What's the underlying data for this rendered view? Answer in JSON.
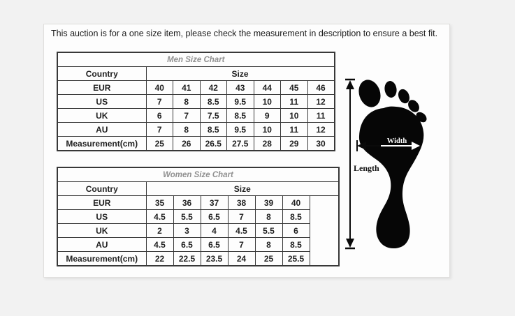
{
  "notice": "This auction is for a one size item, please check the measurement in description to ensure a best fit.",
  "foot_diagram": {
    "width_label": "Width",
    "length_label": "Length"
  },
  "colors": {
    "page_background": "#f2f2f2",
    "panel_background": "#fdfdfd",
    "table_border": "#383838",
    "table_title_text": "#909090",
    "table_body_text": "#1f1f1f",
    "foot_silhouette": "#060606",
    "width_label_text": "#ffffff"
  },
  "chart_data": [
    {
      "type": "table",
      "title": "Men Size Chart",
      "country_header": "Country",
      "size_header": "Size",
      "rows": [
        {
          "label": "EUR",
          "values": [
            "40",
            "41",
            "42",
            "43",
            "44",
            "45",
            "46"
          ]
        },
        {
          "label": "US",
          "values": [
            "7",
            "8",
            "8.5",
            "9.5",
            "10",
            "11",
            "12"
          ]
        },
        {
          "label": "UK",
          "values": [
            "6",
            "7",
            "7.5",
            "8.5",
            "9",
            "10",
            "11"
          ]
        },
        {
          "label": "AU",
          "values": [
            "7",
            "8",
            "8.5",
            "9.5",
            "10",
            "11",
            "12"
          ]
        },
        {
          "label": "Measurement(cm)",
          "values": [
            "25",
            "26",
            "26.5",
            "27.5",
            "28",
            "29",
            "30"
          ]
        }
      ],
      "trailing_empty_column": false
    },
    {
      "type": "table",
      "title": "Women Size Chart",
      "country_header": "Country",
      "size_header": "Size",
      "rows": [
        {
          "label": "EUR",
          "values": [
            "35",
            "36",
            "37",
            "38",
            "39",
            "40"
          ]
        },
        {
          "label": "US",
          "values": [
            "4.5",
            "5.5",
            "6.5",
            "7",
            "8",
            "8.5"
          ]
        },
        {
          "label": "UK",
          "values": [
            "2",
            "3",
            "4",
            "4.5",
            "5.5",
            "6"
          ]
        },
        {
          "label": "AU",
          "values": [
            "4.5",
            "6.5",
            "6.5",
            "7",
            "8",
            "8.5"
          ]
        },
        {
          "label": "Measurement(cm)",
          "values": [
            "22",
            "22.5",
            "23.5",
            "24",
            "25",
            "25.5"
          ]
        }
      ],
      "trailing_empty_column": true
    }
  ]
}
